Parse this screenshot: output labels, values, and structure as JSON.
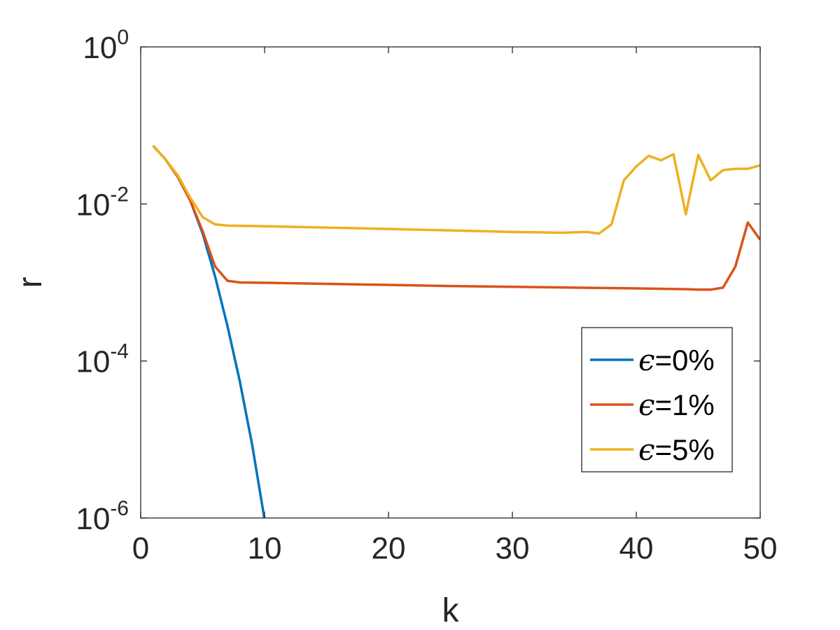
{
  "chart_data": {
    "type": "line",
    "xlabel": "k",
    "ylabel": "r",
    "xlim": [
      0,
      50
    ],
    "ylim": [
      1e-06,
      1
    ],
    "yscale": "log",
    "grid": false,
    "legend_position": "lower-right",
    "x_ticks": [
      {
        "value": 0,
        "label": "0"
      },
      {
        "value": 10,
        "label": "10"
      },
      {
        "value": 20,
        "label": "20"
      },
      {
        "value": 30,
        "label": "30"
      },
      {
        "value": 40,
        "label": "40"
      },
      {
        "value": 50,
        "label": "50"
      }
    ],
    "y_ticks": [
      {
        "value": 1e-06,
        "base": "10",
        "exp": "-6"
      },
      {
        "value": 0.0001,
        "base": "10",
        "exp": "-4"
      },
      {
        "value": 0.01,
        "base": "10",
        "exp": "-2"
      },
      {
        "value": 1,
        "base": "10",
        "exp": "0"
      }
    ],
    "series": [
      {
        "name": "ϵ=0%",
        "legend_symbol": "ϵ",
        "legend_text": "=0%",
        "color": "#0072BD",
        "x": [
          1,
          2,
          3,
          4,
          5,
          6,
          7,
          8,
          9,
          10
        ],
        "y": [
          0.055,
          0.037,
          0.022,
          0.011,
          0.0042,
          0.0012,
          0.00028,
          5.5e-05,
          8.5e-06,
          9.5e-07
        ]
      },
      {
        "name": "ϵ=1%",
        "legend_symbol": "ϵ",
        "legend_text": "=1%",
        "color": "#D95319",
        "x": [
          1,
          2,
          3,
          4,
          5,
          6,
          7,
          8,
          10,
          15,
          20,
          25,
          30,
          35,
          40,
          44,
          45,
          46,
          47,
          48,
          49,
          50
        ],
        "y": [
          0.055,
          0.037,
          0.022,
          0.011,
          0.0045,
          0.0016,
          0.00105,
          0.001,
          0.00099,
          0.00096,
          0.00093,
          0.0009,
          0.00088,
          0.00086,
          0.00084,
          0.00082,
          0.00081,
          0.00081,
          0.00086,
          0.0016,
          0.0058,
          0.0035
        ]
      },
      {
        "name": "ϵ=5%",
        "legend_symbol": "ϵ",
        "legend_text": "=5%",
        "color": "#EDB120",
        "x": [
          1,
          2,
          3,
          4,
          5,
          6,
          7,
          10,
          15,
          20,
          25,
          30,
          34,
          36,
          37,
          38,
          39,
          40,
          41,
          42,
          43,
          44,
          45,
          46,
          47,
          48,
          49,
          50
        ],
        "y": [
          0.055,
          0.037,
          0.023,
          0.012,
          0.0068,
          0.0055,
          0.0053,
          0.0052,
          0.005,
          0.0048,
          0.0046,
          0.0044,
          0.0043,
          0.0044,
          0.0042,
          0.0055,
          0.02,
          0.03,
          0.041,
          0.036,
          0.043,
          0.0074,
          0.042,
          0.02,
          0.027,
          0.028,
          0.028,
          0.031
        ]
      }
    ]
  }
}
